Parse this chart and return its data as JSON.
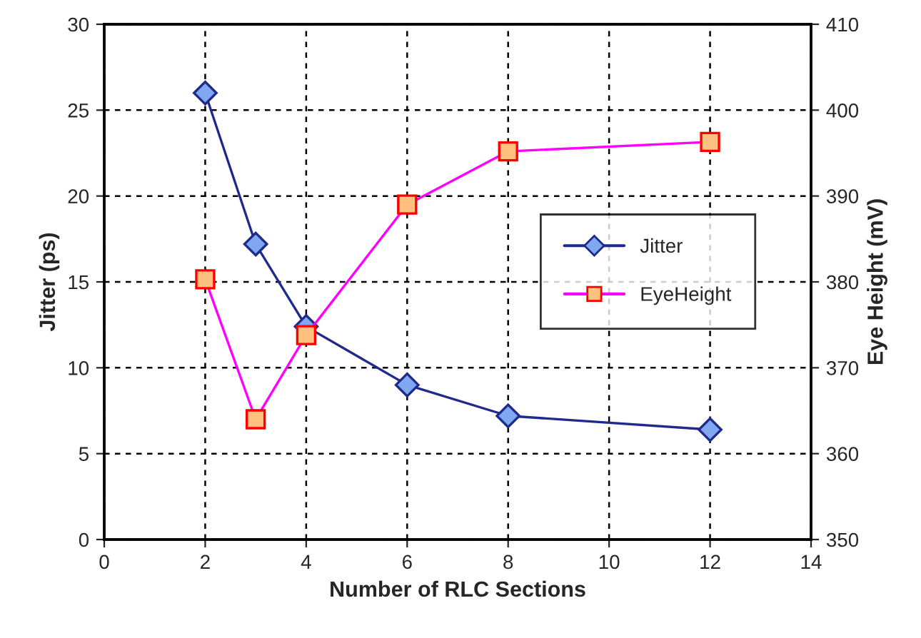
{
  "chart_data": {
    "type": "line",
    "xlabel": "Number of RLC Sections",
    "ylabel": "Jitter (ps)",
    "y2label": "Eye Height (mV)",
    "x": [
      2,
      3,
      4,
      6,
      8,
      12
    ],
    "series": [
      {
        "name": "Jitter",
        "color": "#1f2a8c",
        "marker": "diamond",
        "values": [
          26,
          17.2,
          12.4,
          9,
          7.2,
          6.4
        ]
      },
      {
        "name": "EyeHeight",
        "color": "#ff00ff",
        "marker": "square",
        "axis": "y2",
        "values": [
          380.3,
          364,
          373.8,
          389,
          395.2,
          396.3
        ]
      }
    ],
    "xlim": [
      0,
      14
    ],
    "xticks": [
      0,
      2,
      4,
      6,
      8,
      10,
      12,
      14
    ],
    "ylim": [
      0,
      30
    ],
    "yticks": [
      0,
      5,
      10,
      15,
      20,
      25,
      30
    ],
    "y2lim": [
      350,
      410
    ],
    "y2ticks": [
      350,
      360,
      370,
      380,
      390,
      400,
      410
    ],
    "grid": true,
    "legend": "right",
    "line_style": "solid"
  }
}
